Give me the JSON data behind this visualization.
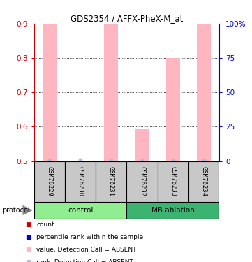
{
  "title": "GDS2354 / AFFX-PheX-M_at",
  "samples": [
    "GSM76229",
    "GSM76230",
    "GSM76231",
    "GSM76232",
    "GSM76233",
    "GSM76234"
  ],
  "bar_values": [
    0.9,
    null,
    0.9,
    0.595,
    0.8,
    0.9
  ],
  "rank_values": [
    0.502,
    0.503,
    0.502,
    0.502,
    0.502,
    0.502
  ],
  "bar_color_absent": "#FFB6C1",
  "rank_color_absent": "#AABBDD",
  "ylim_left": [
    0.5,
    0.9
  ],
  "ylim_right": [
    0,
    100
  ],
  "yticks_left": [
    0.5,
    0.6,
    0.7,
    0.8,
    0.9
  ],
  "yticks_right": [
    0,
    25,
    50,
    75,
    100
  ],
  "ytick_labels_left": [
    "0.5",
    "0.6",
    "0.7",
    "0.8",
    "0.9"
  ],
  "ytick_labels_right": [
    "0",
    "25",
    "50",
    "75",
    "100%"
  ],
  "bar_width": 0.45,
  "legend_items": [
    {
      "color": "#CC0000",
      "label": "count"
    },
    {
      "color": "#0000CC",
      "label": "percentile rank within the sample"
    },
    {
      "color": "#FFB6C1",
      "label": "value, Detection Call = ABSENT"
    },
    {
      "color": "#AABBDD",
      "label": "rank, Detection Call = ABSENT"
    }
  ],
  "protocol_label": "protocol",
  "left_axis_color": "#CC0000",
  "right_axis_color": "#0000CC",
  "sample_box_color": "#C8C8C8",
  "sample_box_edge": "#000000",
  "control_color": "#90EE90",
  "ablation_color": "#3CB371",
  "group_boundaries": [
    {
      "xmin": -0.5,
      "xmax": 2.5,
      "label": "control",
      "color": "#90EE90"
    },
    {
      "xmin": 2.5,
      "xmax": 5.5,
      "label": "MB ablation",
      "color": "#3CB371"
    }
  ]
}
